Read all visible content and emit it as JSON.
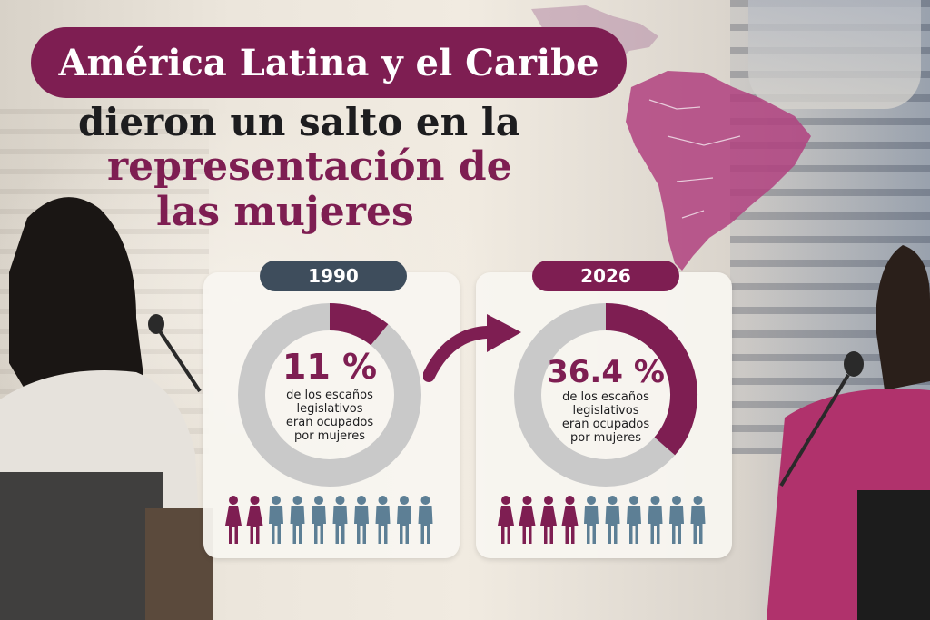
{
  "title": {
    "line1": "América Latina y el Caribe",
    "line2": "dieron un salto en la",
    "line3": "representación de",
    "line4": "las mujeres"
  },
  "colors": {
    "accent": "#7e1e52",
    "slate": "#3e4d5c",
    "ring_bg": "#c9c9c9",
    "figure_gray": "#5d7f95"
  },
  "chart_data": [
    {
      "type": "pie",
      "year": "1990",
      "value_label": "11 %",
      "value": 11,
      "total": 100,
      "description": [
        "de los escaños",
        "legislativos",
        "eran ocupados",
        "por mujeres"
      ],
      "icon_total": 10,
      "icon_highlighted": 2
    },
    {
      "type": "pie",
      "year": "2026",
      "value_label": "36.4 %",
      "value": 36.4,
      "total": 100,
      "description": [
        "de los escaños",
        "legislativos",
        "eran ocupados",
        "por mujeres"
      ],
      "icon_total": 10,
      "icon_highlighted": 4
    }
  ]
}
